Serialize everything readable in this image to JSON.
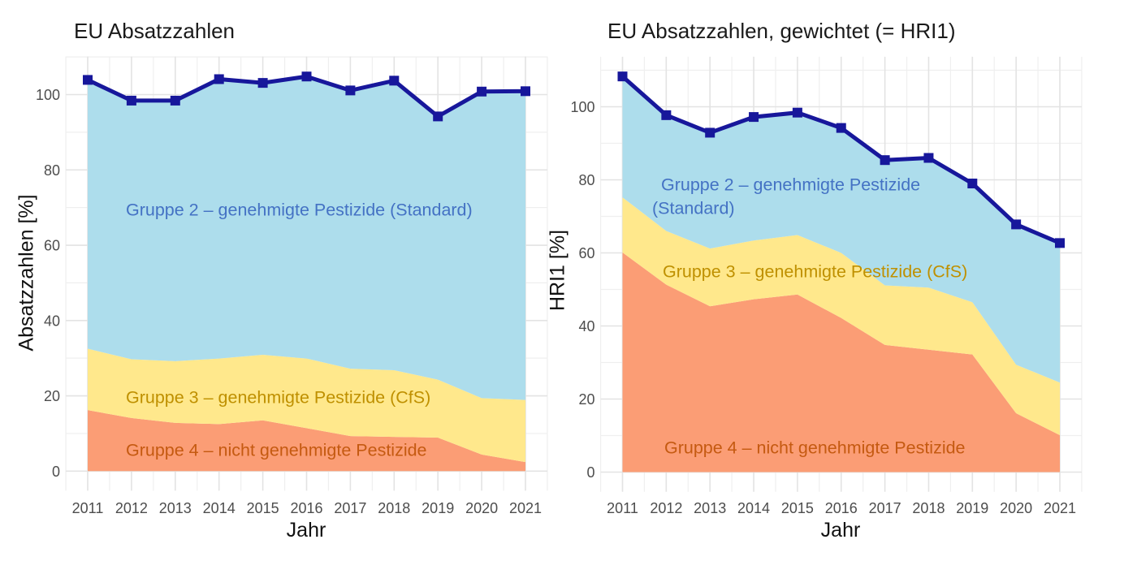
{
  "figure": {
    "background": "#ffffff",
    "grid_major_color": "#e3e3e3",
    "grid_minor_color": "#efefef",
    "tick_label_color": "#4d4d4d",
    "title_color": "#1a1a1a"
  },
  "chart_data": [
    {
      "type": "area",
      "title": "EU Absatzzahlen",
      "xlabel": "Jahr",
      "ylabel": "Absatzzahlen [%]",
      "x": [
        2011,
        2012,
        2013,
        2014,
        2015,
        2016,
        2017,
        2018,
        2019,
        2020,
        2021
      ],
      "yticks": [
        0,
        20,
        40,
        60,
        80,
        100
      ],
      "ylim": [
        -5.2,
        110.1
      ],
      "xlim": [
        2010.5,
        2021.5
      ],
      "grid": true,
      "legend": "none",
      "series": [
        {
          "name": "Gruppe 4 – nicht genehmigte Pestizide",
          "color": "#FB9D75",
          "values": [
            16.2,
            14.1,
            12.8,
            12.5,
            13.5,
            11.4,
            9.3,
            9.1,
            8.9,
            4.4,
            2.4
          ]
        },
        {
          "name": "Gruppe 3 – genehmigte Pestizide (CfS)",
          "color": "#FFE88C",
          "values": [
            16.3,
            15.6,
            16.4,
            17.4,
            17.4,
            18.5,
            17.9,
            17.7,
            15.4,
            15.0,
            16.5
          ]
        },
        {
          "name": "Gruppe 2 – genehmigte Pestizide (Standard)",
          "color": "#ADDDEC",
          "values": [
            71.4,
            68.7,
            69.2,
            74.2,
            72.2,
            74.9,
            73.9,
            76.9,
            69.9,
            81.4,
            82.0
          ]
        }
      ],
      "line": {
        "name": "Absatzzahlen gesamt",
        "color": "#17179B",
        "marker": "square",
        "values": [
          103.9,
          98.4,
          98.4,
          104.1,
          103.1,
          104.8,
          101.1,
          103.7,
          94.2,
          100.8,
          100.9
        ]
      },
      "annotations": [
        {
          "text": "Gruppe 2 – genehmigte Pestizide (Standard)",
          "color": "#4472C4"
        },
        {
          "text": "Gruppe 3 – genehmigte Pestizide (CfS)",
          "color": "#BF9000"
        },
        {
          "text": "Gruppe 4 – nicht genehmigte Pestizide",
          "color": "#C55A11"
        }
      ]
    },
    {
      "type": "area",
      "title": "EU Absatzzahlen, gewichtet (= HRI1)",
      "xlabel": "Jahr",
      "ylabel": "HRI1 [%]",
      "x": [
        2011,
        2012,
        2013,
        2014,
        2015,
        2016,
        2017,
        2018,
        2019,
        2020,
        2021
      ],
      "yticks": [
        0,
        20,
        40,
        60,
        80,
        100
      ],
      "ylim": [
        -5.4,
        113.7
      ],
      "xlim": [
        2010.5,
        2021.5
      ],
      "grid": true,
      "legend": "none",
      "series": [
        {
          "name": "Gruppe 4 – nicht genehmigte Pestizide",
          "color": "#FB9D75",
          "values": [
            60.1,
            51.3,
            45.4,
            47.3,
            48.6,
            42.2,
            34.8,
            33.5,
            32.2,
            16.1,
            10.1
          ]
        },
        {
          "name": "Gruppe 3 – genehmigte Pestizide (CfS)",
          "color": "#FFE88C",
          "values": [
            15.1,
            14.7,
            15.8,
            16.1,
            16.3,
            17.8,
            16.3,
            17.0,
            14.3,
            13.3,
            14.4
          ]
        },
        {
          "name": "Gruppe 2 – genehmigte Pestizide (Standard)",
          "color": "#ADDDEC",
          "values": [
            33.1,
            31.7,
            31.7,
            33.8,
            33.5,
            34.2,
            34.3,
            35.5,
            32.5,
            38.4,
            38.2
          ]
        }
      ],
      "line": {
        "name": "HRI1",
        "color": "#17179B",
        "marker": "square",
        "values": [
          108.3,
          97.7,
          92.9,
          97.2,
          98.4,
          94.2,
          85.4,
          86.0,
          79.0,
          67.8,
          62.7
        ]
      },
      "annotations": [
        {
          "text": "Gruppe 2 – genehmigte Pestizide",
          "color": "#4472C4"
        },
        {
          "text": "(Standard)",
          "color": "#4472C4"
        },
        {
          "text": "Gruppe 3 – genehmigte Pestizide (CfS)",
          "color": "#BF9000"
        },
        {
          "text": "Gruppe 4 – nicht genehmigte Pestizide",
          "color": "#C55A11"
        }
      ]
    }
  ]
}
